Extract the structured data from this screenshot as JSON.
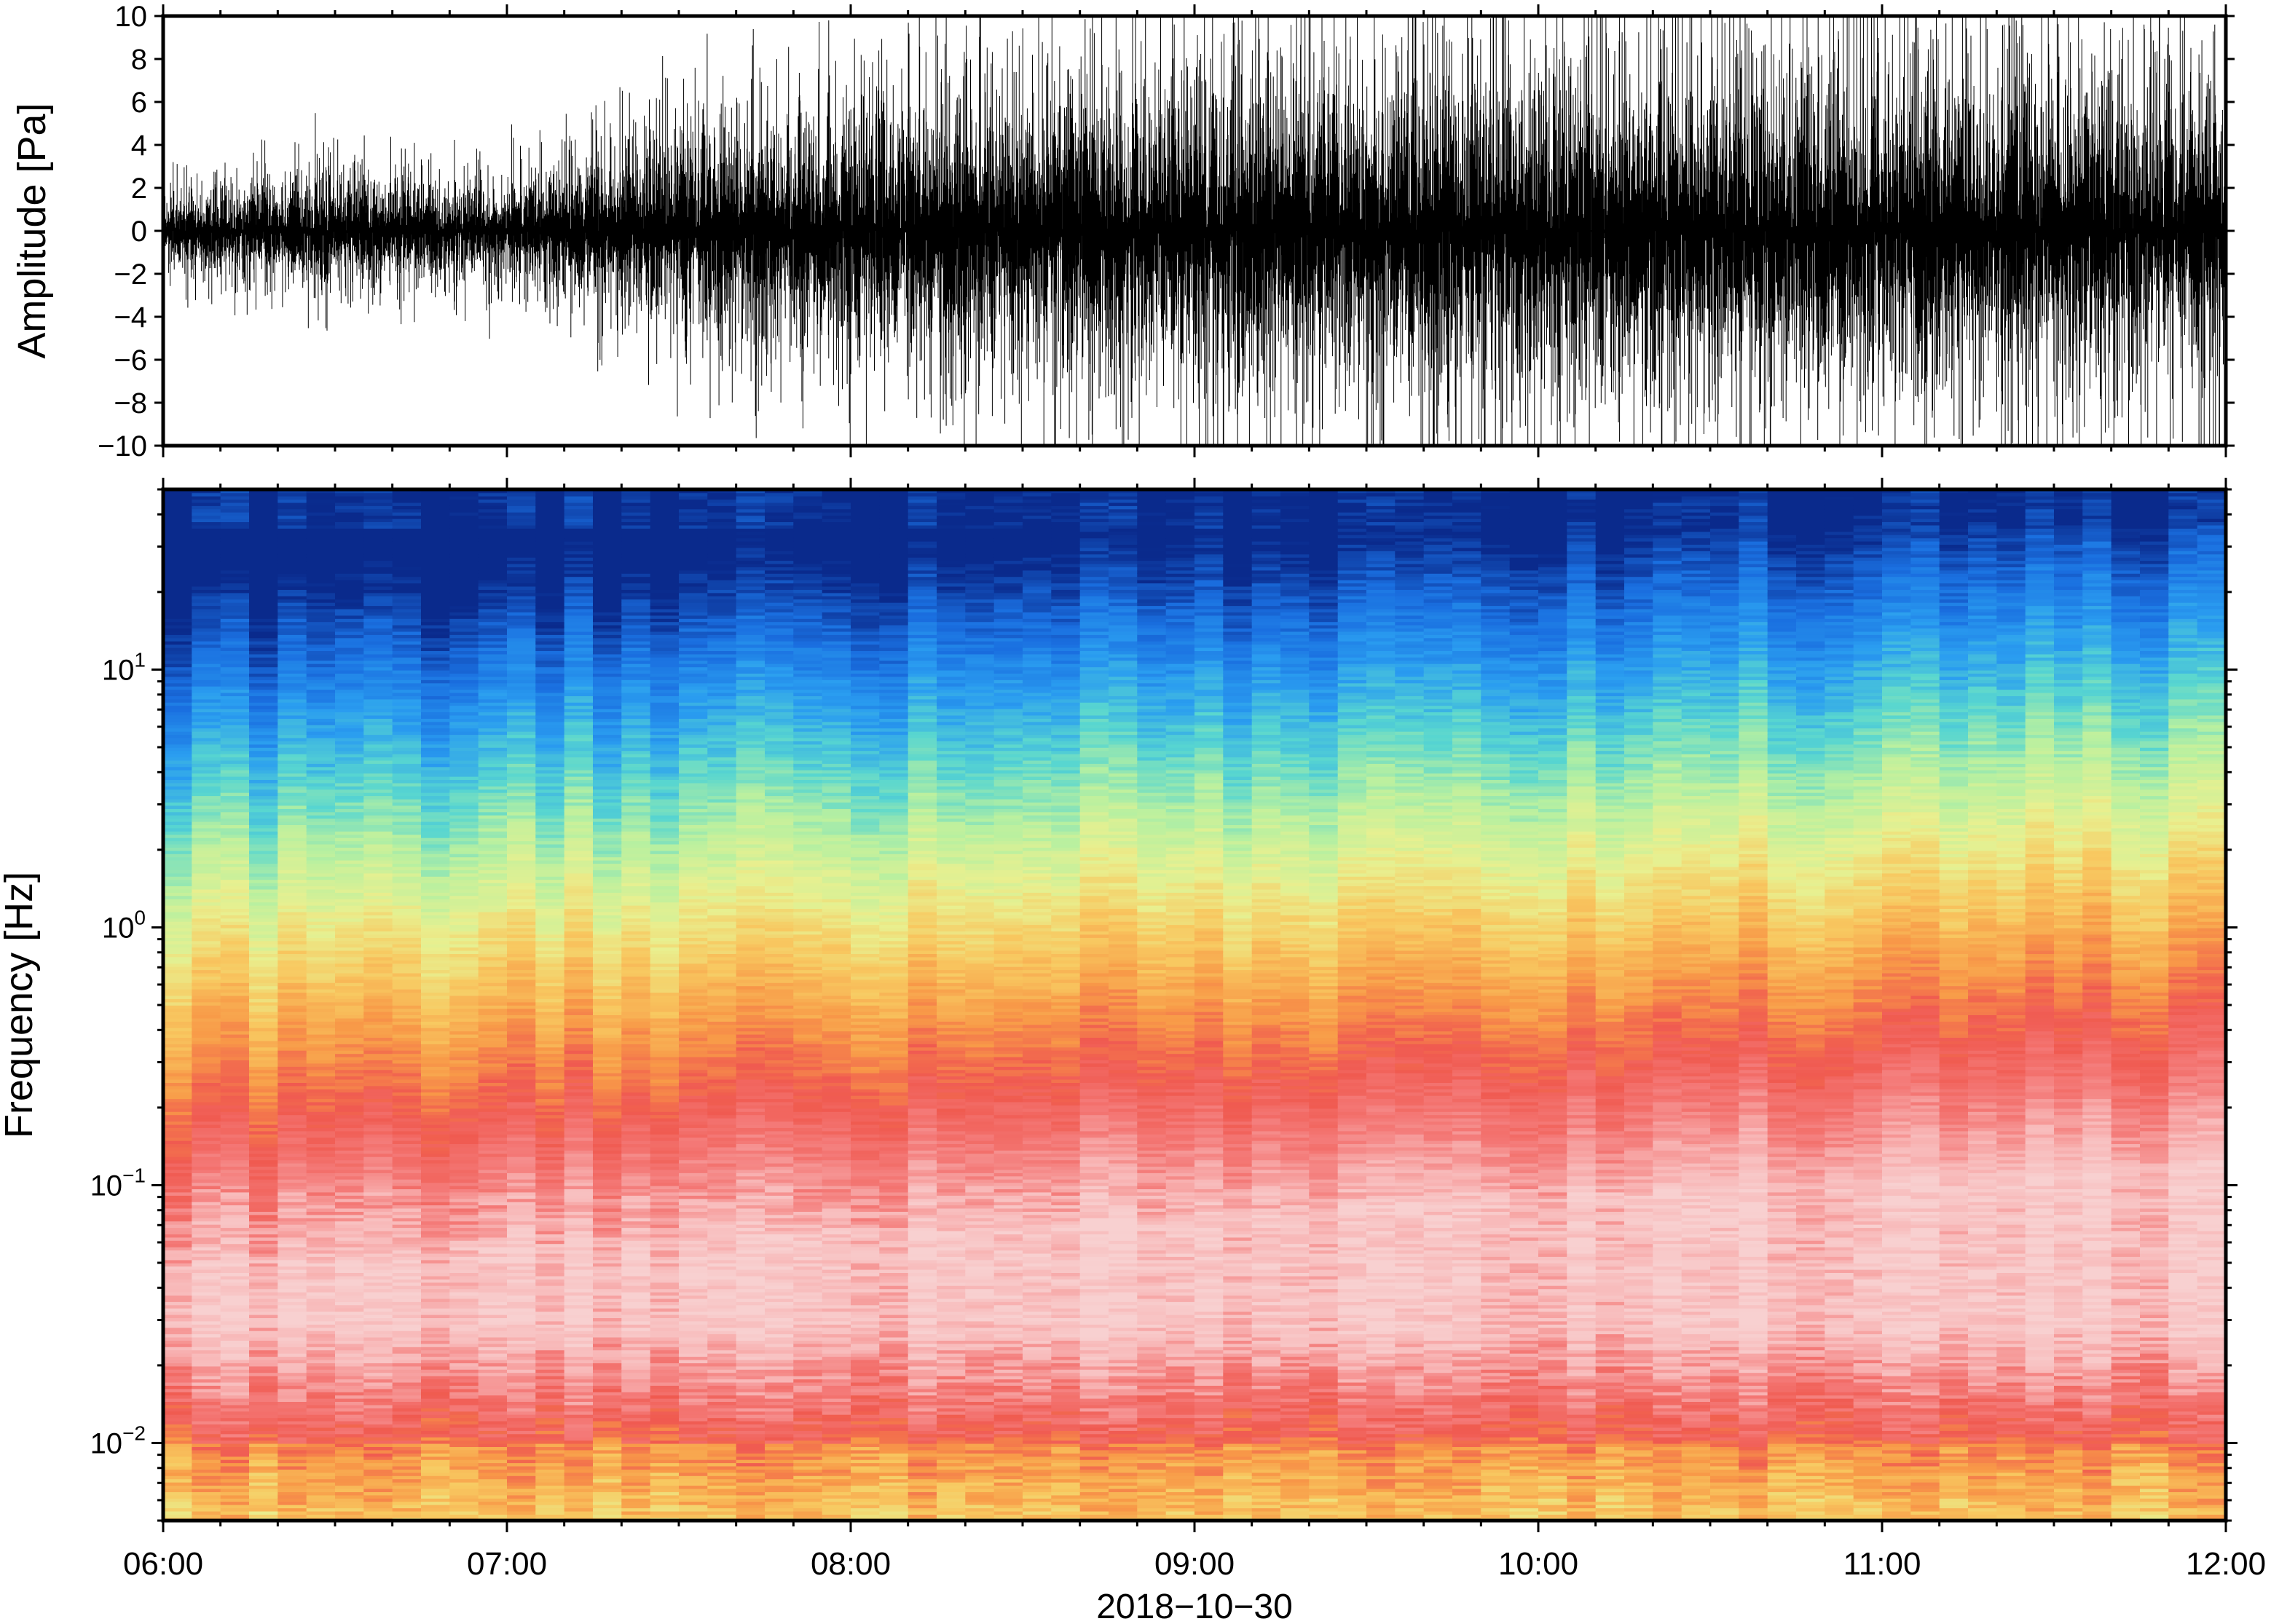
{
  "chart_data": [
    {
      "type": "line",
      "ylabel": "Amplitude [Pa]",
      "ylim": [
        -10,
        10
      ],
      "yticks": [
        -10,
        -8,
        -6,
        -4,
        -2,
        0,
        2,
        4,
        6,
        8,
        10
      ],
      "ytick_labels": [
        "−10",
        "−8",
        "−6",
        "−4",
        "−2",
        "0",
        "2",
        "4",
        "6",
        "8",
        "10"
      ],
      "xlim": [
        "06:00",
        "12:00"
      ],
      "envelope": {
        "times": [
          "06:00",
          "06:30",
          "07:00",
          "07:30",
          "08:00",
          "08:30",
          "09:00",
          "09:30",
          "10:00",
          "10:30",
          "11:00",
          "11:30",
          "12:00"
        ],
        "max_abs_amplitude": [
          2.5,
          3.5,
          3.0,
          6.5,
          7.5,
          8.5,
          9.5,
          10,
          10,
          10,
          10,
          9.5,
          9
        ]
      },
      "series_color": "#000000"
    },
    {
      "type": "heatmap",
      "ylabel": "Frequency [Hz]",
      "yscale": "log",
      "ylim": [
        0.005,
        50
      ],
      "yticks": [
        {
          "base": "10",
          "exp": "−2",
          "value": 0.01
        },
        {
          "base": "10",
          "exp": "−1",
          "value": 0.1
        },
        {
          "base": "10",
          "exp": "0",
          "value": 1
        },
        {
          "base": "10",
          "exp": "1",
          "value": 10
        }
      ],
      "xlabel": "2018−10−30",
      "xticks": [
        "06:00",
        "07:00",
        "08:00",
        "09:00",
        "10:00",
        "11:00",
        "12:00"
      ],
      "colormap": [
        "#0a2a8c",
        "#1a6fe0",
        "#2a9df0",
        "#58d6d0",
        "#b8f0a0",
        "#e8f090",
        "#f8c860",
        "#f89a48",
        "#f05a50",
        "#f47a78",
        "#f8b8b8",
        "#f8d0d0"
      ]
    }
  ]
}
